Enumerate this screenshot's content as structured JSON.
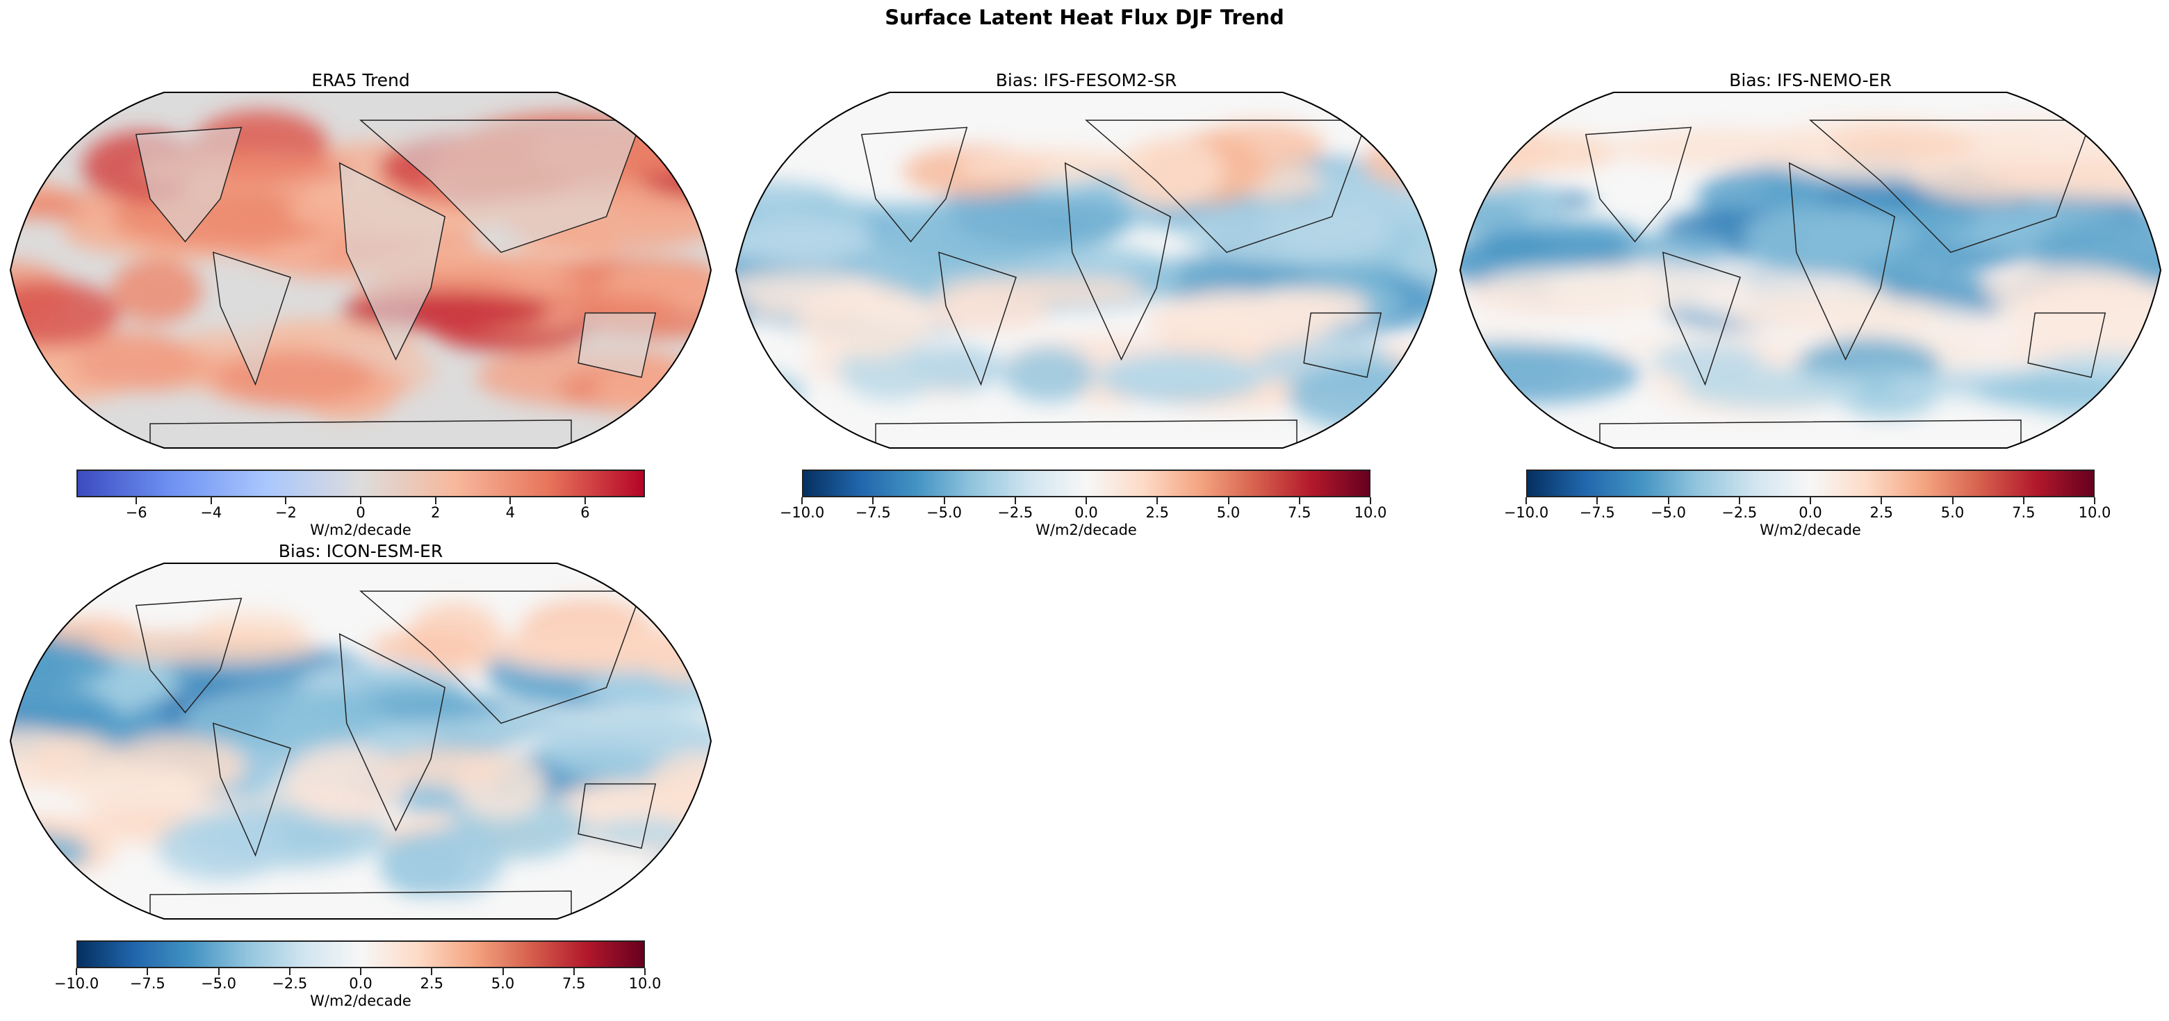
{
  "figure": {
    "title": "Surface Latent Heat Flux DJF Trend"
  },
  "panels": [
    {
      "title": "ERA5 Trend",
      "colormap": "coolwarm",
      "vmin": -7.6,
      "vmax": 7.6,
      "ticks": [
        "−6",
        "−4",
        "−2",
        "0",
        "2",
        "4",
        "6"
      ],
      "tick_values": [
        -6,
        -4,
        -2,
        0,
        2,
        4,
        6
      ],
      "colorbar_label": "W/m2/decade",
      "land_color": "#dcdcdc"
    },
    {
      "title": "Bias: IFS-FESOM2-SR",
      "colormap": "RdBu_r",
      "vmin": -10,
      "vmax": 10,
      "ticks": [
        "−10.0",
        "−7.5",
        "−5.0",
        "−2.5",
        "0.0",
        "2.5",
        "5.0",
        "7.5",
        "10.0"
      ],
      "tick_values": [
        -10,
        -7.5,
        -5,
        -2.5,
        0,
        2.5,
        5,
        7.5,
        10
      ],
      "colorbar_label": "W/m2/decade",
      "land_color": "#f7f7f7"
    },
    {
      "title": "Bias: IFS-NEMO-ER",
      "colormap": "RdBu_r",
      "vmin": -10,
      "vmax": 10,
      "ticks": [
        "−10.0",
        "−7.5",
        "−5.0",
        "−2.5",
        "0.0",
        "2.5",
        "5.0",
        "7.5",
        "10.0"
      ],
      "tick_values": [
        -10,
        -7.5,
        -5,
        -2.5,
        0,
        2.5,
        5,
        7.5,
        10
      ],
      "colorbar_label": "W/m2/decade",
      "land_color": "#f7f7f7"
    },
    {
      "title": "Bias: ICON-ESM-ER",
      "colormap": "RdBu_r",
      "vmin": -10,
      "vmax": 10,
      "ticks": [
        "−10.0",
        "−7.5",
        "−5.0",
        "−2.5",
        "0.0",
        "2.5",
        "5.0",
        "7.5",
        "10.0"
      ],
      "tick_values": [
        -10,
        -7.5,
        -5,
        -2.5,
        0,
        2.5,
        5,
        7.5,
        10
      ],
      "colorbar_label": "W/m2/decade",
      "land_color": "#f7f7f7"
    }
  ],
  "colormaps": {
    "coolwarm": [
      "#3b4cc0",
      "#6f92f3",
      "#aac7fd",
      "#dddcdc",
      "#f7b89c",
      "#e7745b",
      "#b40426"
    ],
    "RdBu_r": [
      "#053061",
      "#2166ac",
      "#4393c3",
      "#92c5de",
      "#d1e5f0",
      "#f7f7f7",
      "#fddbc7",
      "#f4a582",
      "#d6604d",
      "#b2182b",
      "#67001f"
    ]
  }
}
